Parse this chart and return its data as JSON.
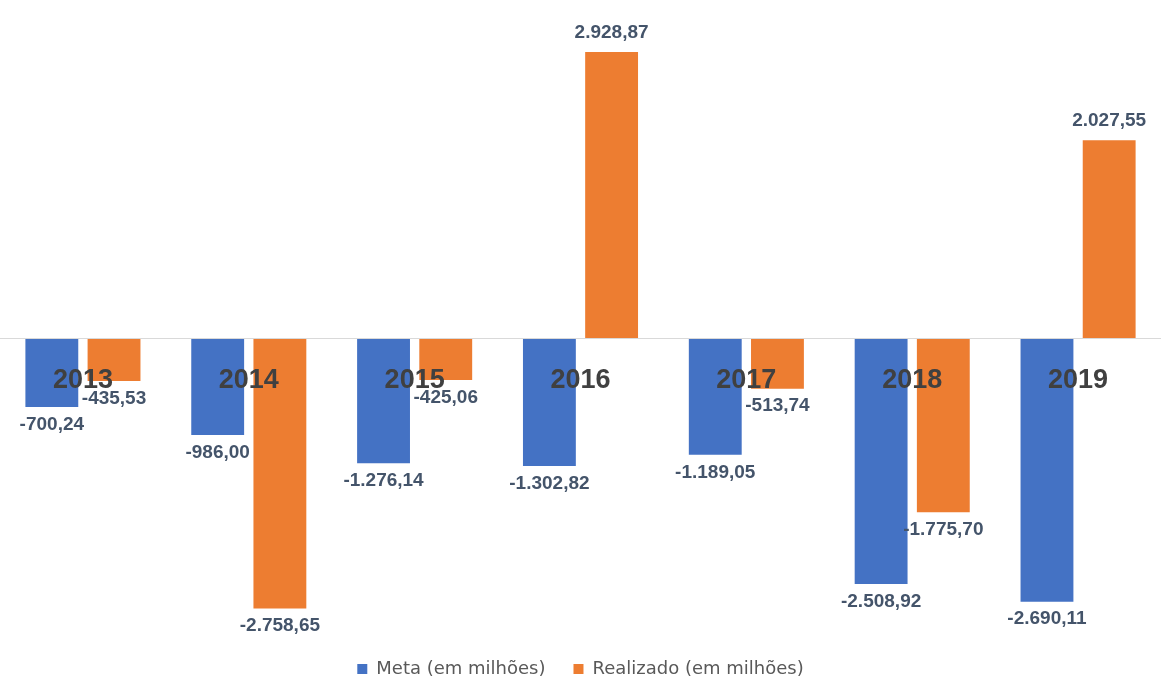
{
  "chart_data": {
    "type": "bar",
    "categories": [
      "2013",
      "2014",
      "2015",
      "2016",
      "2017",
      "2018",
      "2019"
    ],
    "series": [
      {
        "name": "Meta (em milhões)",
        "color": "#4472c4",
        "values": [
          -700.24,
          -986.0,
          -1276.14,
          -1302.82,
          -1189.05,
          -2508.92,
          -2690.11
        ],
        "value_labels": [
          "-700,24",
          "-986,00",
          "-1.276,14",
          "-1.302,82",
          "-1.189,05",
          "-2.508,92",
          "-2.690,11"
        ]
      },
      {
        "name": "Realizado (em milhões)",
        "color": "#ed7d31",
        "values": [
          -435.53,
          -2758.65,
          -425.06,
          2928.87,
          -513.74,
          -1775.7,
          2027.55
        ],
        "value_labels": [
          "-435,53",
          "-2.758,65",
          "-425,06",
          "2.928,87",
          "-513,74",
          "-1.775,70",
          "2.027,55"
        ]
      }
    ],
    "tick_labels": "x",
    "legend": "bottom"
  }
}
